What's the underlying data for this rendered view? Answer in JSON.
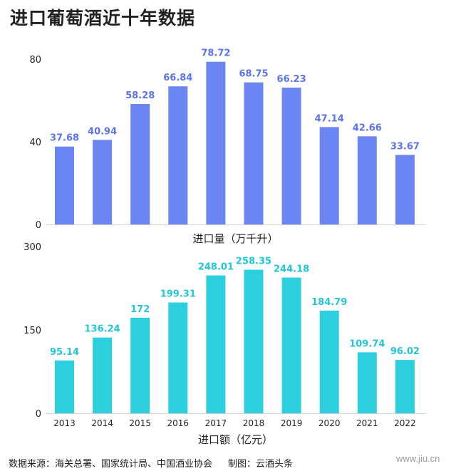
{
  "page": {
    "title": "进口葡萄酒近十年数据",
    "source": "数据来源：海关总署、国家统计局、中国酒业协会",
    "credit": "制图：云酒头条",
    "watermark": "www.jiu.cn"
  },
  "chart_data": [
    {
      "type": "bar",
      "xlabel": "进口量（万千升）",
      "ylabel": "",
      "categories": [
        "2013",
        "2014",
        "2015",
        "2016",
        "2017",
        "2018",
        "2019",
        "2020",
        "2021",
        "2022"
      ],
      "values": [
        37.68,
        40.94,
        58.28,
        66.84,
        78.72,
        68.75,
        66.23,
        47.14,
        42.66,
        33.67
      ],
      "value_labels": [
        "37.68",
        "40.94",
        "58.28",
        "66.84",
        "78.72",
        "68.75",
        "66.23",
        "47.14",
        "42.66",
        "33.67"
      ],
      "ylim": [
        0,
        80
      ],
      "yticks": [
        0,
        40,
        80
      ],
      "ytick_labels": [
        "0",
        "40",
        "80"
      ],
      "show_xtick_labels": false,
      "color": "#6b86f3",
      "label_color": "#5b74ea",
      "grid": false
    },
    {
      "type": "bar",
      "xlabel": "进口额（亿元）",
      "ylabel": "",
      "categories": [
        "2013",
        "2014",
        "2015",
        "2016",
        "2017",
        "2018",
        "2019",
        "2020",
        "2021",
        "2022"
      ],
      "values": [
        95.14,
        136.24,
        172,
        199.31,
        248.01,
        258.35,
        244.18,
        184.79,
        109.74,
        96.02
      ],
      "value_labels": [
        "95.14",
        "136.24",
        "172",
        "199.31",
        "248.01",
        "258.35",
        "244.18",
        "184.79",
        "109.74",
        "96.02"
      ],
      "ylim": [
        0,
        300
      ],
      "yticks": [
        0,
        150,
        300
      ],
      "ytick_labels": [
        "0",
        "150",
        "300"
      ],
      "show_xtick_labels": true,
      "color": "#2ccfdd",
      "label_color": "#22c6d6",
      "grid": false
    }
  ]
}
